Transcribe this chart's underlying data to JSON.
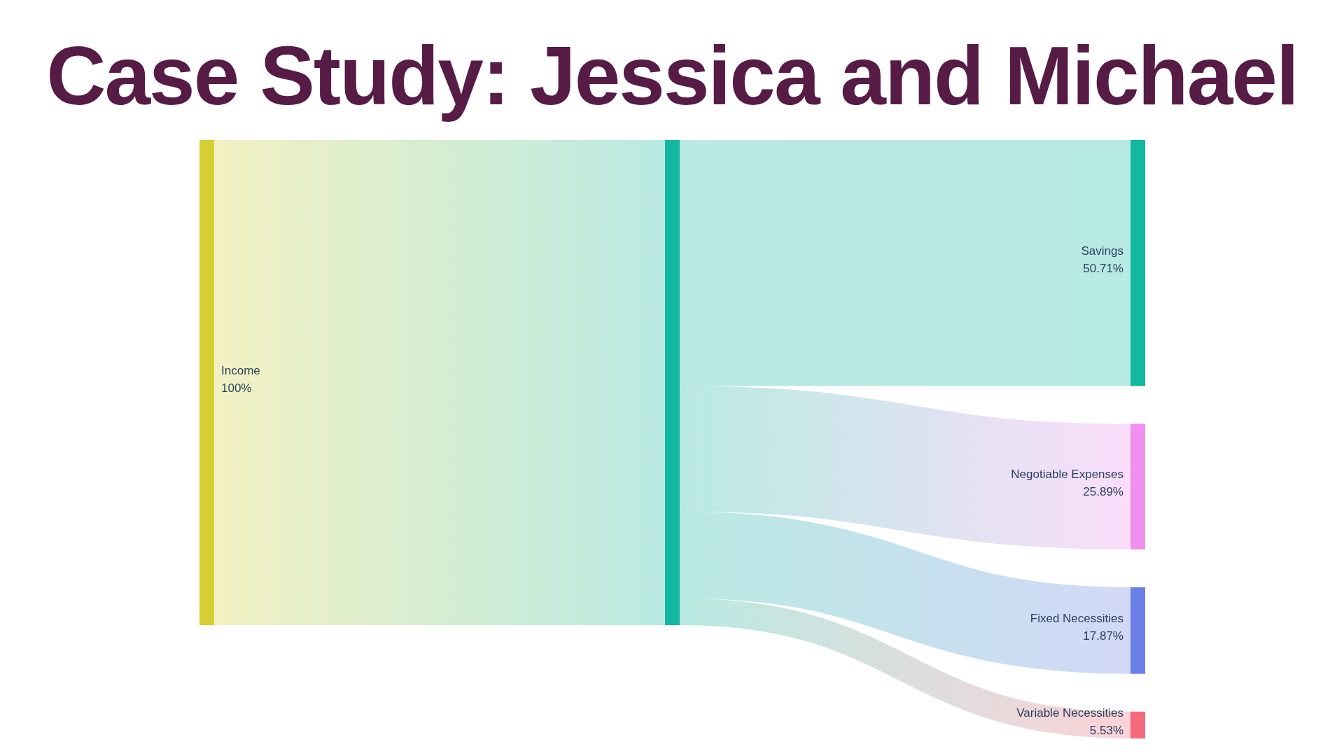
{
  "chart_data": {
    "type": "other",
    "title": "Case Study: Jessica and Michael",
    "categories": [
      "Income",
      null,
      "Savings",
      "Negotiable Expenses",
      "Fixed Necessities",
      "Variable Necessities"
    ],
    "values": [
      100,
      null,
      50.71,
      25.89,
      17.87,
      5.53
    ],
    "value_labels": [
      "100%",
      null,
      "50.71%",
      "25.89%",
      "17.87%",
      "5.53%"
    ],
    "colors": [
      "#d4cf32",
      "#14b8a0",
      "#10b9a0",
      "#ef8ff0",
      "#6a7fe8",
      "#f56a7a"
    ]
  }
}
